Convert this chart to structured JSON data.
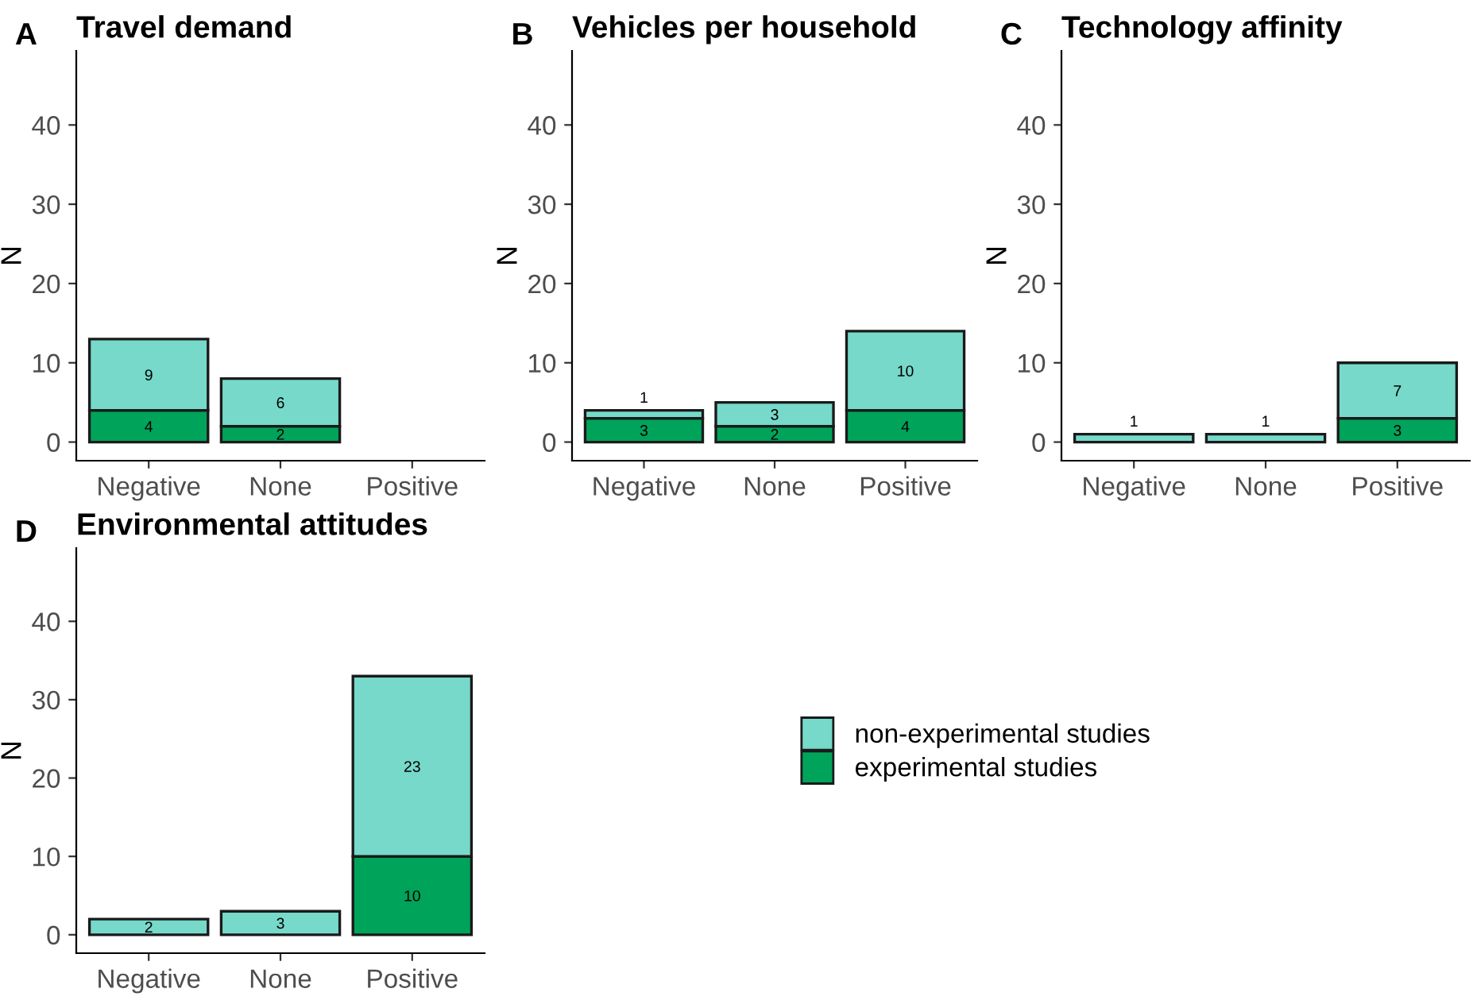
{
  "chart_data": [
    {
      "type": "bar",
      "title": "Travel demand",
      "annotations": [
        "A"
      ],
      "ylabel": "N",
      "categories": [
        "Negative",
        "None",
        "Positive"
      ],
      "stacked": true,
      "ylim": [
        -2.35,
        49.35
      ],
      "yticks": [
        0,
        10,
        20,
        30,
        40
      ],
      "grid": false,
      "series": [
        {
          "color": "#00a35a",
          "values": [
            4,
            2,
            null
          ],
          "value_labels": [
            "4",
            "2",
            null
          ]
        },
        {
          "color": "#76d9c9",
          "values": [
            9,
            6,
            null
          ],
          "value_labels": [
            "9",
            "6",
            null
          ]
        }
      ]
    },
    {
      "type": "bar",
      "title": "Vehicles per household",
      "annotations": [
        "B"
      ],
      "ylabel": "N",
      "categories": [
        "Negative",
        "None",
        "Positive"
      ],
      "stacked": true,
      "ylim": [
        -2.35,
        49.35
      ],
      "yticks": [
        0,
        10,
        20,
        30,
        40
      ],
      "grid": false,
      "series": [
        {
          "color": "#00a35a",
          "values": [
            3,
            2,
            4
          ],
          "value_labels": [
            "3",
            "2",
            "4"
          ]
        },
        {
          "color": "#76d9c9",
          "values": [
            1,
            3,
            10
          ],
          "value_labels": [
            "1",
            "3",
            "10"
          ]
        }
      ]
    },
    {
      "type": "bar",
      "title": "Technology affinity",
      "annotations": [
        "C"
      ],
      "ylabel": "N",
      "categories": [
        "Negative",
        "None",
        "Positive"
      ],
      "stacked": true,
      "ylim": [
        -2.35,
        49.35
      ],
      "yticks": [
        0,
        10,
        20,
        30,
        40
      ],
      "grid": false,
      "series": [
        {
          "color": "#00a35a",
          "values": [
            0,
            0,
            3
          ],
          "value_labels": [
            null,
            null,
            "3"
          ]
        },
        {
          "color": "#76d9c9",
          "values": [
            1,
            1,
            7
          ],
          "value_labels": [
            "1",
            "1",
            "7"
          ]
        }
      ]
    },
    {
      "type": "bar",
      "title": "Environmental attitudes",
      "annotations": [
        "D"
      ],
      "ylabel": "N",
      "categories": [
        "Negative",
        "None",
        "Positive"
      ],
      "stacked": true,
      "ylim": [
        -2.35,
        49.35
      ],
      "yticks": [
        0,
        10,
        20,
        30,
        40
      ],
      "grid": false,
      "legend": "right",
      "series": [
        {
          "name": "experimental studies",
          "color": "#00a35a",
          "values": [
            0,
            0,
            10
          ],
          "value_labels": [
            null,
            null,
            "10"
          ]
        },
        {
          "name": "non-experimental studies",
          "color": "#76d9c9",
          "values": [
            2,
            3,
            23
          ],
          "value_labels": [
            "2",
            "3",
            "23"
          ]
        }
      ]
    }
  ]
}
